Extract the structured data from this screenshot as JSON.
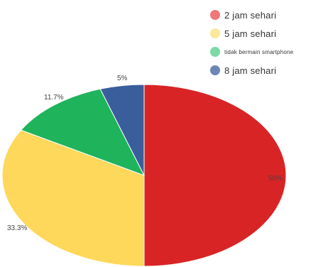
{
  "chart_data": {
    "type": "pie",
    "categories": [
      "2 jam sehari",
      "5 jam sehari",
      "tidak bermain smartphone",
      "8 jam sehari"
    ],
    "values": [
      50,
      33.3,
      11.7,
      5
    ],
    "value_labels": [
      "50%",
      "33.3%",
      "11.7%",
      "5%"
    ],
    "colors": [
      "#d92426",
      "#fdd85a",
      "#1fb35c",
      "#3a5d9c"
    ],
    "legend_colors": [
      "#ef7777",
      "#fde79a",
      "#7ed9a7",
      "#6c86b8"
    ],
    "legend_position": "top-right",
    "start_angle_deg": 0,
    "direction": "clockwise"
  }
}
